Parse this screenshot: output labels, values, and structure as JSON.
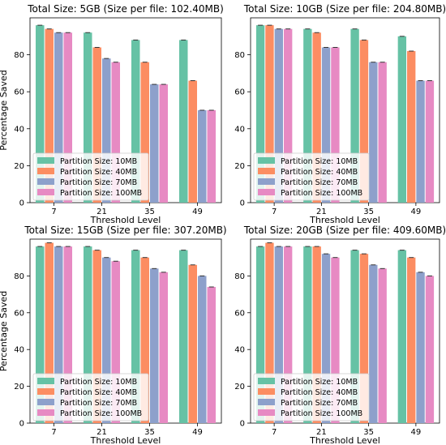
{
  "chart_data": [
    {
      "type": "bar",
      "title": "Total Size: 5GB (Size per file: 102.40MB)",
      "xlabel": "Threshold Level",
      "ylabel": "Percentage Saved",
      "categories": [
        "7",
        "21",
        "35",
        "49"
      ],
      "ylim": [
        0,
        100
      ],
      "yticks": [
        0,
        20,
        40,
        60,
        80
      ],
      "legend_position": "lower-left",
      "error_bars": true,
      "series": [
        {
          "name": "Partition Size: 10MB",
          "color": "#66c2a5",
          "values": [
            96,
            92,
            88,
            88
          ]
        },
        {
          "name": "Partition Size: 40MB",
          "color": "#fc8d62",
          "values": [
            94,
            84,
            76,
            66
          ]
        },
        {
          "name": "Partition Size: 70MB",
          "color": "#8da0cb",
          "values": [
            92,
            78,
            64,
            50
          ]
        },
        {
          "name": "Partition Size: 100MB",
          "color": "#e78ac3",
          "values": [
            92,
            76,
            64,
            50
          ]
        }
      ]
    },
    {
      "type": "bar",
      "title": "Total Size: 10GB (Size per file: 204.80MB)",
      "xlabel": "Threshold Level",
      "ylabel": "",
      "categories": [
        "7",
        "21",
        "35",
        "49"
      ],
      "ylim": [
        0,
        100
      ],
      "yticks": [
        0,
        20,
        40,
        60,
        80
      ],
      "legend_position": "lower-left",
      "error_bars": true,
      "series": [
        {
          "name": "Partition Size: 10MB",
          "color": "#66c2a5",
          "values": [
            96,
            94,
            94,
            90
          ]
        },
        {
          "name": "Partition Size: 40MB",
          "color": "#fc8d62",
          "values": [
            96,
            92,
            88,
            82
          ]
        },
        {
          "name": "Partition Size: 70MB",
          "color": "#8da0cb",
          "values": [
            94,
            84,
            76,
            66
          ]
        },
        {
          "name": "Partition Size: 100MB",
          "color": "#e78ac3",
          "values": [
            94,
            84,
            76,
            66
          ]
        }
      ]
    },
    {
      "type": "bar",
      "title": "Total Size: 15GB (Size per file: 307.20MB)",
      "xlabel": "Threshold Level",
      "ylabel": "Percentage Saved",
      "categories": [
        "7",
        "21",
        "35",
        "49"
      ],
      "ylim": [
        0,
        100
      ],
      "yticks": [
        0,
        20,
        40,
        60,
        80
      ],
      "legend_position": "lower-left",
      "error_bars": true,
      "series": [
        {
          "name": "Partition Size: 10MB",
          "color": "#66c2a5",
          "values": [
            96,
            96,
            94,
            94
          ]
        },
        {
          "name": "Partition Size: 40MB",
          "color": "#fc8d62",
          "values": [
            98,
            94,
            90,
            86
          ]
        },
        {
          "name": "Partition Size: 70MB",
          "color": "#8da0cb",
          "values": [
            96,
            90,
            84,
            80
          ]
        },
        {
          "name": "Partition Size: 100MB",
          "color": "#e78ac3",
          "values": [
            96,
            88,
            82,
            74
          ]
        }
      ]
    },
    {
      "type": "bar",
      "title": "Total Size: 20GB (Size per file: 409.60MB)",
      "xlabel": "Threshold Level",
      "ylabel": "",
      "categories": [
        "7",
        "21",
        "35",
        "49"
      ],
      "ylim": [
        0,
        100
      ],
      "yticks": [
        0,
        20,
        40,
        60,
        80
      ],
      "legend_position": "lower-left",
      "error_bars": true,
      "series": [
        {
          "name": "Partition Size: 10MB",
          "color": "#66c2a5",
          "values": [
            96,
            96,
            94,
            94
          ]
        },
        {
          "name": "Partition Size: 40MB",
          "color": "#fc8d62",
          "values": [
            98,
            96,
            92,
            90
          ]
        },
        {
          "name": "Partition Size: 70MB",
          "color": "#8da0cb",
          "values": [
            96,
            92,
            86,
            82
          ]
        },
        {
          "name": "Partition Size: 100MB",
          "color": "#e78ac3",
          "values": [
            96,
            90,
            84,
            80
          ]
        }
      ]
    }
  ]
}
